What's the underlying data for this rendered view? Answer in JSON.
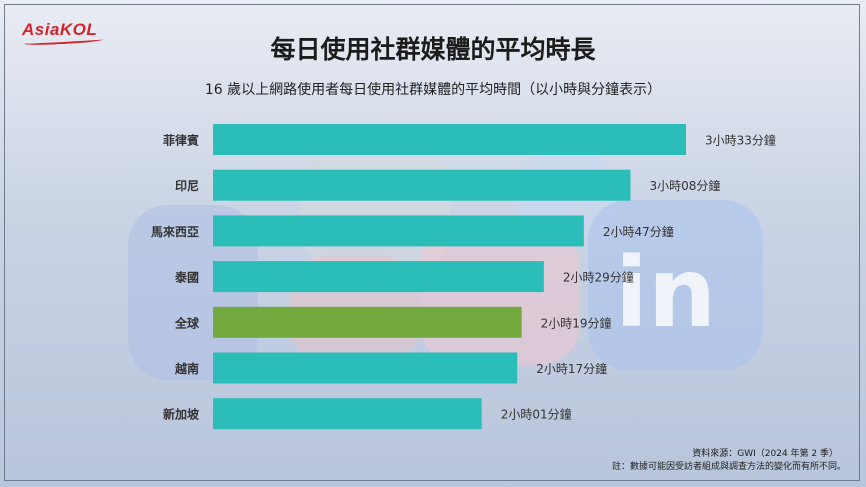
{
  "brand": {
    "logo_text": "AsiaKOL"
  },
  "header": {
    "title": "每日使用社群媒體的平均時長",
    "subtitle": "16 歲以上網路使用者每日使用社群媒體的平均時間（以小時與分鐘表示）"
  },
  "footer": {
    "source": "資料來源：GWI（2024 年第 2 季）",
    "note": "註：數據可能因受訪者組成與調查方法的變化而有所不同。"
  },
  "colors": {
    "default_bar": "#2bbdb8",
    "highlight_bar": "#72aa40"
  },
  "chart_data": {
    "type": "bar",
    "orientation": "horizontal",
    "title": "每日使用社群媒體的平均時長",
    "subtitle": "16 歲以上網路使用者每日使用社群媒體的平均時間（以小時與分鐘表示）",
    "categories": [
      "菲律賓",
      "印尼",
      "馬來西亞",
      "泰國",
      "全球",
      "越南",
      "新加坡"
    ],
    "values": [
      213,
      188,
      167,
      149,
      139,
      137,
      121
    ],
    "value_unit": "minutes",
    "data_labels": [
      "3小時33分鐘",
      "3小時08分鐘",
      "2小時47分鐘",
      "2小時29分鐘",
      "2小時19分鐘",
      "2小時17分鐘",
      "2小時01分鐘"
    ],
    "highlight_category": "全球",
    "xlim": [
      0,
      213
    ],
    "grid": false,
    "legend": "none"
  }
}
